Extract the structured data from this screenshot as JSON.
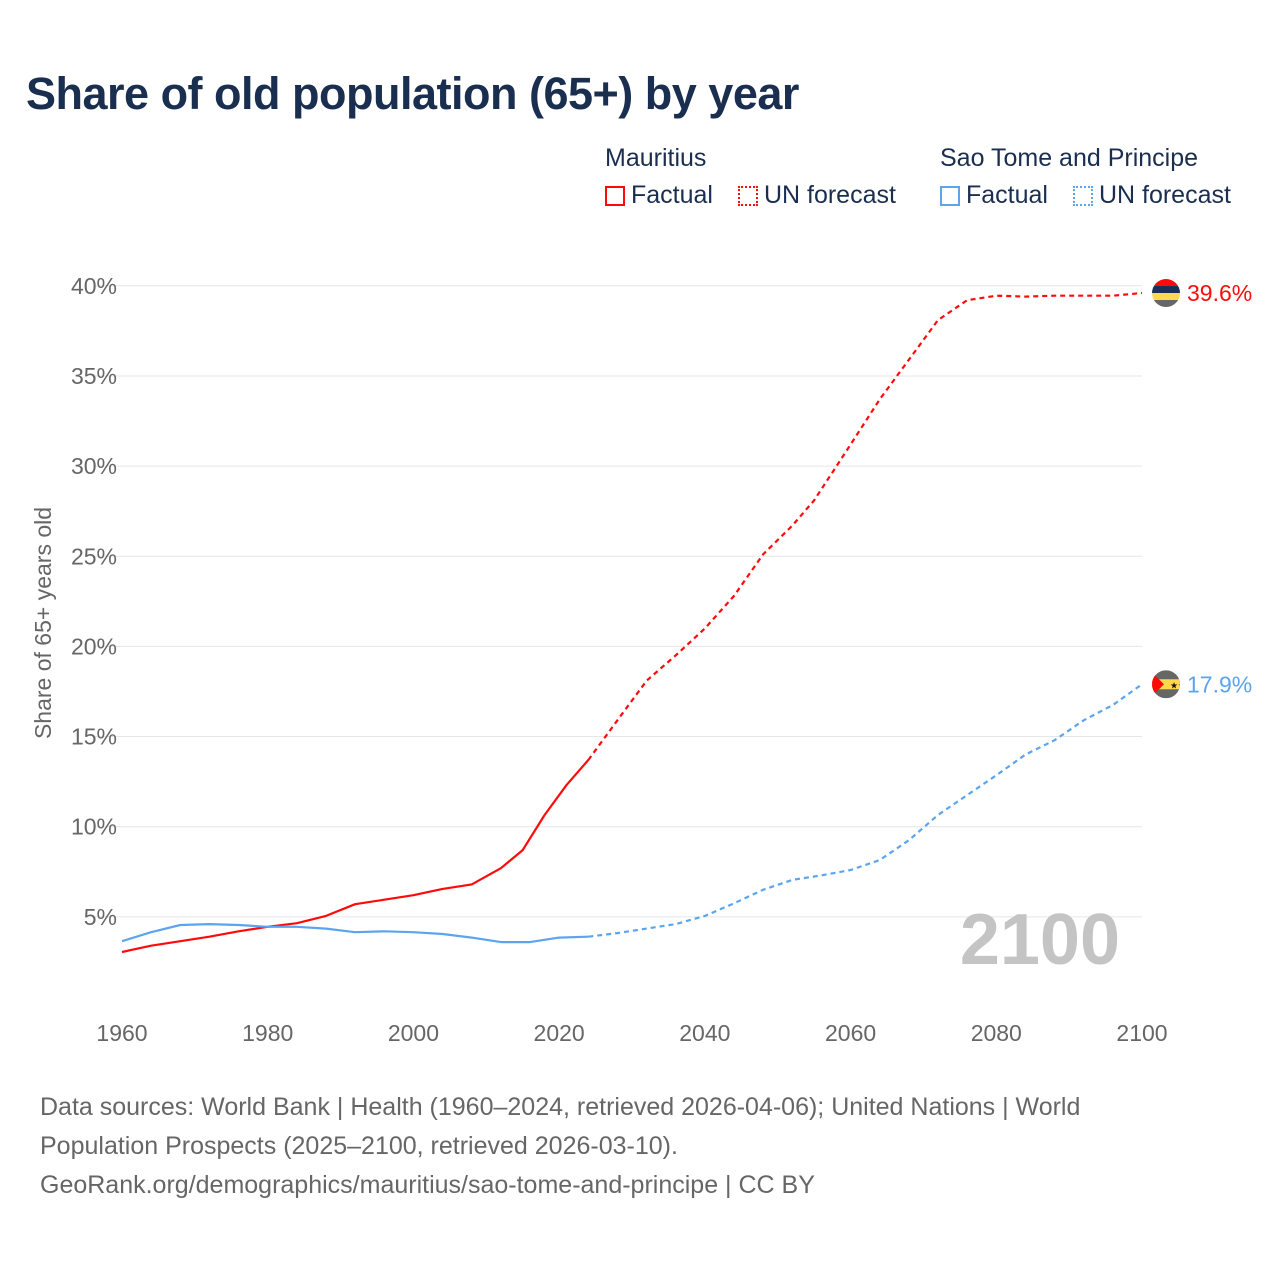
{
  "title": "Share of old population (65+) by year",
  "legend": [
    {
      "country": "Mauritius",
      "color": "#ff0a0a",
      "factual_label": "Factual",
      "forecast_label": "UN forecast"
    },
    {
      "country": "Sao Tome and Principe",
      "color": "#5ba4ee",
      "factual_label": "Factual",
      "forecast_label": "UN forecast"
    }
  ],
  "footer": {
    "line1": "Data sources: World Bank | Health (1960–2024, retrieved 2026-04-06); United Nations | World",
    "line2": "Population Prospects (2025–2100, retrieved 2026-03-10).",
    "line3": "GeoRank.org/demographics/mauritius/sao-tome-and-principe | CC BY"
  },
  "chart_data": {
    "type": "line",
    "title": "Share of old population (65+) by year",
    "ylabel": "Share of 65+ years old",
    "xlabel": "",
    "xlim": [
      1960,
      2100
    ],
    "ylim": [
      0,
      40
    ],
    "x_ticks": [
      "1960",
      "1980",
      "2000",
      "2020",
      "2040",
      "2060",
      "2080",
      "2100"
    ],
    "y_ticks": [
      "5%",
      "10%",
      "15%",
      "20%",
      "25%",
      "30%",
      "35%",
      "40%"
    ],
    "grid": true,
    "year_watermark": "2100",
    "series": [
      {
        "name": "Mauritius",
        "color": "#ff0a0a",
        "end_label": "39.6%",
        "factual": {
          "x": [
            1960,
            1964,
            1968,
            1972,
            1976,
            1980,
            1984,
            1988,
            1992,
            1996,
            2000,
            2004,
            2008,
            2012,
            2015,
            2018,
            2021,
            2024
          ],
          "y": [
            3.05,
            3.4,
            3.65,
            3.9,
            4.2,
            4.45,
            4.65,
            5.05,
            5.7,
            5.95,
            6.2,
            6.55,
            6.8,
            7.7,
            8.7,
            10.65,
            12.3,
            13.7
          ]
        },
        "forecast": {
          "x": [
            2024,
            2028,
            2032,
            2036,
            2040,
            2044,
            2048,
            2052,
            2055,
            2060,
            2064,
            2068,
            2072,
            2076,
            2080,
            2084,
            2088,
            2092,
            2096,
            2100
          ],
          "y": [
            13.7,
            15.9,
            18.1,
            19.5,
            21.0,
            22.8,
            25.1,
            26.7,
            28.1,
            31.2,
            33.7,
            35.9,
            38.1,
            39.2,
            39.45,
            39.4,
            39.45,
            39.45,
            39.45,
            39.6
          ]
        }
      },
      {
        "name": "Sao Tome and Principe",
        "color": "#5ba4ee",
        "end_label": "17.9%",
        "factual": {
          "x": [
            1960,
            1964,
            1968,
            1972,
            1976,
            1980,
            1984,
            1988,
            1992,
            1996,
            2000,
            2004,
            2008,
            2012,
            2016,
            2020,
            2024
          ],
          "y": [
            3.65,
            4.15,
            4.55,
            4.6,
            4.55,
            4.45,
            4.45,
            4.35,
            4.15,
            4.2,
            4.15,
            4.05,
            3.85,
            3.6,
            3.6,
            3.85,
            3.9
          ]
        },
        "forecast": {
          "x": [
            2024,
            2028,
            2032,
            2036,
            2040,
            2044,
            2048,
            2052,
            2056,
            2060,
            2064,
            2068,
            2072,
            2076,
            2080,
            2084,
            2088,
            2092,
            2096,
            2100
          ],
          "y": [
            3.9,
            4.1,
            4.35,
            4.6,
            5.05,
            5.75,
            6.5,
            7.05,
            7.3,
            7.6,
            8.15,
            9.25,
            10.65,
            11.75,
            12.85,
            14.0,
            14.8,
            15.9,
            16.75,
            17.9
          ]
        }
      }
    ]
  }
}
